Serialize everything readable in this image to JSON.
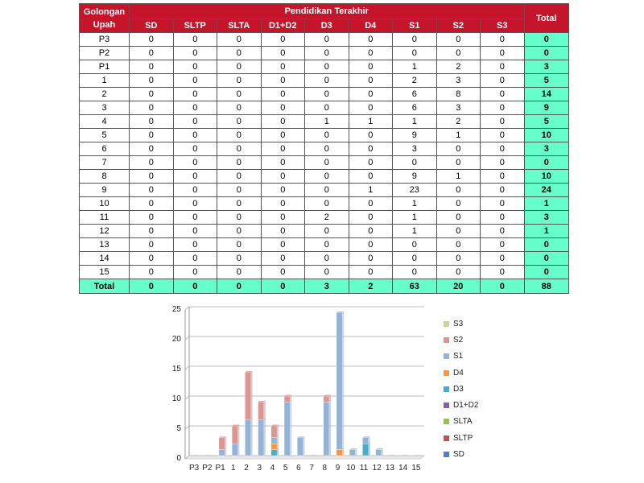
{
  "table": {
    "header_group": "Golongan Upah",
    "header_group_line1": "Golongan",
    "header_group_line2": "Upah",
    "header_edu": "Pendidikan Terakhir",
    "header_total": "Total",
    "columns": [
      "SD",
      "SLTP",
      "SLTA",
      "D1+D2",
      "D3",
      "D4",
      "S1",
      "S2",
      "S3"
    ],
    "rows": [
      {
        "label": "P3",
        "values": [
          0,
          0,
          0,
          0,
          0,
          0,
          0,
          0,
          0
        ],
        "total": 0
      },
      {
        "label": "P2",
        "values": [
          0,
          0,
          0,
          0,
          0,
          0,
          0,
          0,
          0
        ],
        "total": 0
      },
      {
        "label": "P1",
        "values": [
          0,
          0,
          0,
          0,
          0,
          0,
          1,
          2,
          0
        ],
        "total": 3
      },
      {
        "label": "1",
        "values": [
          0,
          0,
          0,
          0,
          0,
          0,
          2,
          3,
          0
        ],
        "total": 5
      },
      {
        "label": "2",
        "values": [
          0,
          0,
          0,
          0,
          0,
          0,
          6,
          8,
          0
        ],
        "total": 14
      },
      {
        "label": "3",
        "values": [
          0,
          0,
          0,
          0,
          0,
          0,
          6,
          3,
          0
        ],
        "total": 9
      },
      {
        "label": "4",
        "values": [
          0,
          0,
          0,
          0,
          1,
          1,
          1,
          2,
          0
        ],
        "total": 5
      },
      {
        "label": "5",
        "values": [
          0,
          0,
          0,
          0,
          0,
          0,
          9,
          1,
          0
        ],
        "total": 10
      },
      {
        "label": "6",
        "values": [
          0,
          0,
          0,
          0,
          0,
          0,
          3,
          0,
          0
        ],
        "total": 3
      },
      {
        "label": "7",
        "values": [
          0,
          0,
          0,
          0,
          0,
          0,
          0,
          0,
          0
        ],
        "total": 0
      },
      {
        "label": "8",
        "values": [
          0,
          0,
          0,
          0,
          0,
          0,
          9,
          1,
          0
        ],
        "total": 10
      },
      {
        "label": "9",
        "values": [
          0,
          0,
          0,
          0,
          0,
          1,
          23,
          0,
          0
        ],
        "total": 24
      },
      {
        "label": "10",
        "values": [
          0,
          0,
          0,
          0,
          0,
          0,
          1,
          0,
          0
        ],
        "total": 1
      },
      {
        "label": "11",
        "values": [
          0,
          0,
          0,
          0,
          2,
          0,
          1,
          0,
          0
        ],
        "total": 3
      },
      {
        "label": "12",
        "values": [
          0,
          0,
          0,
          0,
          0,
          0,
          1,
          0,
          0
        ],
        "total": 1
      },
      {
        "label": "13",
        "values": [
          0,
          0,
          0,
          0,
          0,
          0,
          0,
          0,
          0
        ],
        "total": 0
      },
      {
        "label": "14",
        "values": [
          0,
          0,
          0,
          0,
          0,
          0,
          0,
          0,
          0
        ],
        "total": 0
      },
      {
        "label": "15",
        "values": [
          0,
          0,
          0,
          0,
          0,
          0,
          0,
          0,
          0
        ],
        "total": 0
      }
    ],
    "footer": {
      "label": "Total",
      "values": [
        0,
        0,
        0,
        0,
        3,
        2,
        63,
        20,
        0
      ],
      "total": 88
    }
  },
  "chart_data": {
    "type": "bar",
    "stacked": true,
    "categories": [
      "P3",
      "P2",
      "P1",
      "1",
      "2",
      "3",
      "4",
      "5",
      "6",
      "7",
      "8",
      "9",
      "10",
      "11",
      "12",
      "13",
      "14",
      "15"
    ],
    "series": [
      {
        "name": "SD",
        "color": "#4f81bd",
        "values": [
          0,
          0,
          0,
          0,
          0,
          0,
          0,
          0,
          0,
          0,
          0,
          0,
          0,
          0,
          0,
          0,
          0,
          0
        ]
      },
      {
        "name": "SLTP",
        "color": "#c0504d",
        "values": [
          0,
          0,
          0,
          0,
          0,
          0,
          0,
          0,
          0,
          0,
          0,
          0,
          0,
          0,
          0,
          0,
          0,
          0
        ]
      },
      {
        "name": "SLTA",
        "color": "#9bbb59",
        "values": [
          0,
          0,
          0,
          0,
          0,
          0,
          0,
          0,
          0,
          0,
          0,
          0,
          0,
          0,
          0,
          0,
          0,
          0
        ]
      },
      {
        "name": "D1+D2",
        "color": "#8064a2",
        "values": [
          0,
          0,
          0,
          0,
          0,
          0,
          0,
          0,
          0,
          0,
          0,
          0,
          0,
          0,
          0,
          0,
          0,
          0
        ]
      },
      {
        "name": "D3",
        "color": "#4bacc6",
        "values": [
          0,
          0,
          0,
          0,
          0,
          0,
          1,
          0,
          0,
          0,
          0,
          0,
          0,
          2,
          0,
          0,
          0,
          0
        ]
      },
      {
        "name": "D4",
        "color": "#f79646",
        "values": [
          0,
          0,
          0,
          0,
          0,
          0,
          1,
          0,
          0,
          0,
          0,
          1,
          0,
          0,
          0,
          0,
          0,
          0
        ]
      },
      {
        "name": "S1",
        "color": "#95b3d7",
        "values": [
          0,
          0,
          1,
          2,
          6,
          6,
          1,
          9,
          3,
          0,
          9,
          23,
          1,
          1,
          1,
          0,
          0,
          0
        ]
      },
      {
        "name": "S2",
        "color": "#d99694",
        "values": [
          0,
          0,
          2,
          3,
          8,
          3,
          2,
          1,
          0,
          0,
          1,
          0,
          0,
          0,
          0,
          0,
          0,
          0
        ]
      },
      {
        "name": "S3",
        "color": "#c3d69b",
        "values": [
          0,
          0,
          0,
          0,
          0,
          0,
          0,
          0,
          0,
          0,
          0,
          0,
          0,
          0,
          0,
          0,
          0,
          0
        ]
      }
    ],
    "yticks": [
      0,
      5,
      10,
      15,
      20,
      25
    ],
    "ylim": [
      0,
      25
    ],
    "grid": true,
    "legend_position": "right"
  }
}
